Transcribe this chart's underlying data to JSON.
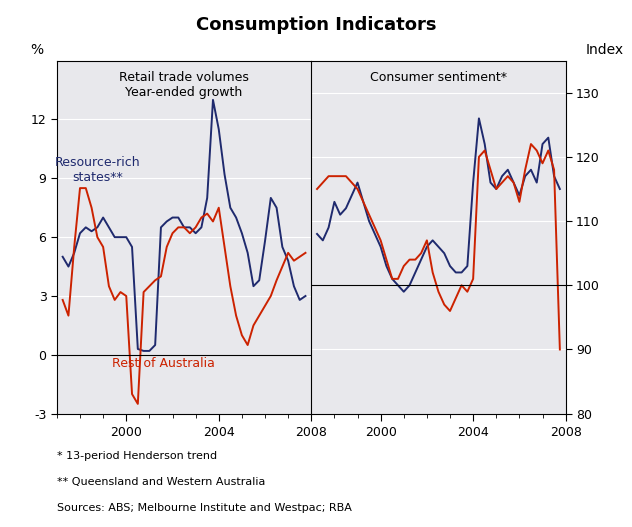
{
  "title": "Consumption Indicators",
  "left_ylabel": "%",
  "right_ylabel": "Index",
  "left_panel_label": "Retail trade volumes\nYear-ended growth",
  "right_panel_label": "Consumer sentiment*",
  "resource_rich_label": "Resource-rich\nstates**",
  "rest_label": "Rest of Australia",
  "footnote1": "* 13-period Henderson trend",
  "footnote2": "** Queensland and Western Australia",
  "footnote3": "Sources: ABS; Melbourne Institute and Westpac; RBA",
  "navy_color": "#1f2a6e",
  "red_color": "#cc2200",
  "bg_color": "#e8e8ec",
  "left_ylim": [
    -3,
    15
  ],
  "left_yticks": [
    -3,
    0,
    3,
    6,
    9,
    12
  ],
  "right_ylim": [
    80,
    135
  ],
  "right_yticks": [
    80,
    90,
    100,
    110,
    120,
    130
  ],
  "retail_x": [
    1997.25,
    1997.5,
    1997.75,
    1998.0,
    1998.25,
    1998.5,
    1998.75,
    1999.0,
    1999.25,
    1999.5,
    1999.75,
    2000.0,
    2000.25,
    2000.5,
    2000.75,
    2001.0,
    2001.25,
    2001.5,
    2001.75,
    2002.0,
    2002.25,
    2002.5,
    2002.75,
    2003.0,
    2003.25,
    2003.5,
    2003.75,
    2004.0,
    2004.25,
    2004.5,
    2004.75,
    2005.0,
    2005.25,
    2005.5,
    2005.75,
    2006.0,
    2006.25,
    2006.5,
    2006.75,
    2007.0,
    2007.25,
    2007.5,
    2007.75
  ],
  "rr_retail": [
    5.0,
    4.5,
    5.2,
    6.2,
    6.5,
    6.3,
    6.5,
    7.0,
    6.5,
    6.0,
    6.0,
    6.0,
    5.5,
    0.3,
    0.2,
    0.2,
    0.5,
    6.5,
    6.8,
    7.0,
    7.0,
    6.5,
    6.5,
    6.2,
    6.5,
    8.0,
    13.0,
    11.5,
    9.2,
    7.5,
    7.0,
    6.2,
    5.2,
    3.5,
    3.8,
    5.8,
    8.0,
    7.5,
    5.5,
    4.8,
    3.5,
    2.8,
    3.0
  ],
  "rest_retail": [
    2.8,
    2.0,
    5.5,
    8.5,
    8.5,
    7.5,
    6.0,
    5.5,
    3.5,
    2.8,
    3.2,
    3.0,
    -2.0,
    -2.5,
    3.2,
    3.5,
    3.8,
    4.0,
    5.5,
    6.2,
    6.5,
    6.5,
    6.2,
    6.5,
    7.0,
    7.2,
    6.8,
    7.5,
    5.5,
    3.5,
    2.0,
    1.0,
    0.5,
    1.5,
    2.0,
    2.5,
    3.0,
    3.8,
    4.5,
    5.2,
    4.8,
    5.0,
    5.2
  ],
  "sent_x": [
    1997.25,
    1997.5,
    1997.75,
    1998.0,
    1998.25,
    1998.5,
    1998.75,
    1999.0,
    1999.25,
    1999.5,
    1999.75,
    2000.0,
    2000.25,
    2000.5,
    2000.75,
    2001.0,
    2001.25,
    2001.5,
    2001.75,
    2002.0,
    2002.25,
    2002.5,
    2002.75,
    2003.0,
    2003.25,
    2003.5,
    2003.75,
    2004.0,
    2004.25,
    2004.5,
    2004.75,
    2005.0,
    2005.25,
    2005.5,
    2005.75,
    2006.0,
    2006.25,
    2006.5,
    2006.75,
    2007.0,
    2007.25,
    2007.5,
    2007.75
  ],
  "rr_sent": [
    108,
    107,
    109,
    113,
    111,
    112,
    114,
    116,
    113,
    110,
    108,
    106,
    103,
    101,
    100,
    99,
    100,
    102,
    104,
    106,
    107,
    106,
    105,
    103,
    102,
    102,
    103,
    116,
    126,
    122,
    116,
    115,
    117,
    118,
    116,
    114,
    117,
    118,
    116,
    122,
    123,
    117,
    115
  ],
  "rest_sent": [
    115,
    116,
    117,
    117,
    117,
    117,
    116,
    115,
    113,
    111,
    109,
    107,
    104,
    101,
    101,
    103,
    104,
    104,
    105,
    107,
    102,
    99,
    97,
    96,
    98,
    100,
    99,
    101,
    120,
    121,
    118,
    115,
    116,
    117,
    116,
    113,
    118,
    122,
    121,
    119,
    121,
    118,
    90
  ]
}
